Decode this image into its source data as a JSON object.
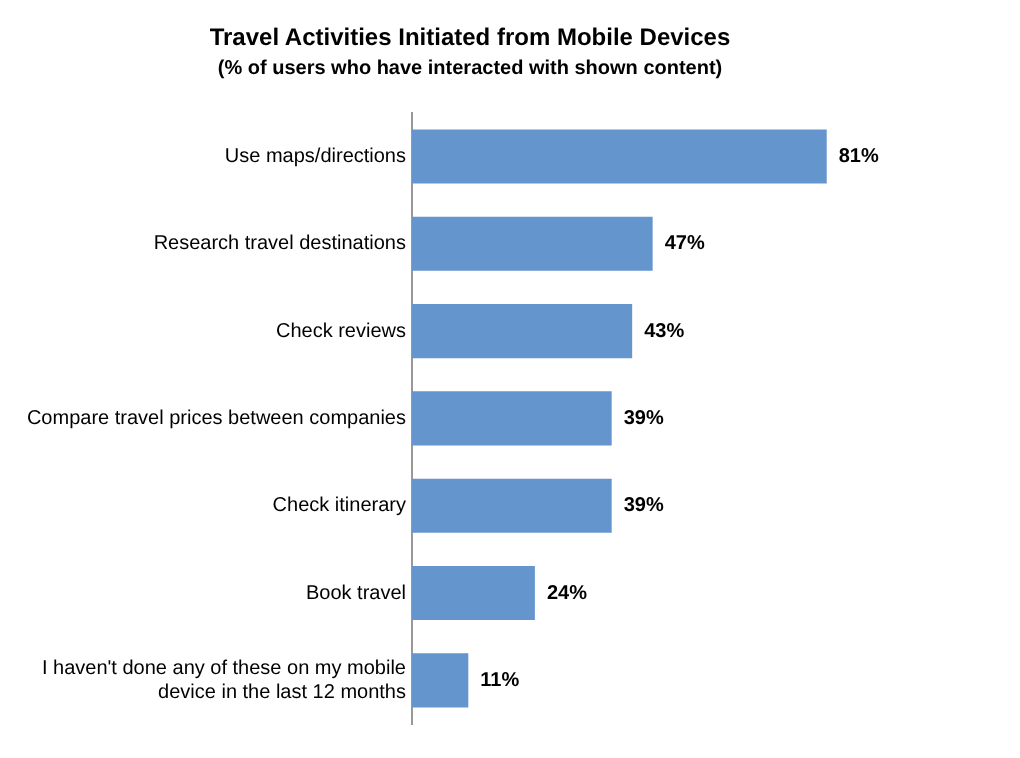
{
  "chart_data": {
    "type": "bar",
    "orientation": "horizontal",
    "title": "Travel Activities Initiated from Mobile Devices",
    "subtitle": "(% of users who have interacted with shown content)",
    "categories": [
      "Use maps/directions",
      "Research travel destinations",
      "Check reviews",
      "Compare travel prices between companies",
      "Check itinerary",
      "Book travel",
      "I haven't done any of these on my mobile device in the last 12 months"
    ],
    "values": [
      81,
      47,
      43,
      39,
      39,
      24,
      11
    ],
    "value_labels": [
      "81%",
      "47%",
      "43%",
      "39%",
      "39%",
      "24%",
      "11%"
    ],
    "color": "#6495cd"
  }
}
